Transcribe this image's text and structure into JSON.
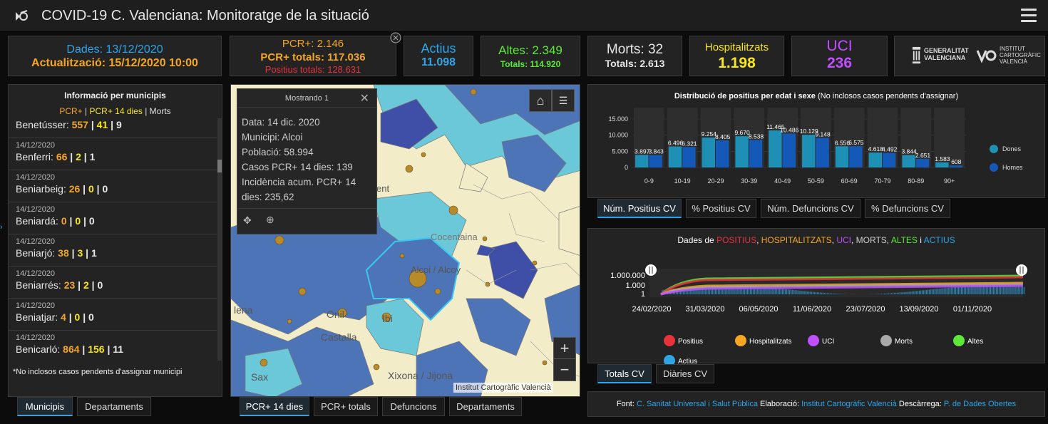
{
  "header": {
    "title": "COVID-19 C. Valenciana: Monitoratge de la situació"
  },
  "stats": {
    "dates": "Dades: 13/12/2020",
    "update": "Actualització: 15/12/2020 10:00",
    "pcr": "PCR+: 2.146",
    "pcr_total": "PCR+ totals: 117.036",
    "pos_total": "Positius totals: 128.631",
    "active_label": "Actius",
    "active_value": "11.098",
    "altes": "Altes: 2.349",
    "altes_total": "Totals: 114.920",
    "morts": "Morts: 32",
    "morts_total": "Totals: 2.613",
    "hosp_label": "Hospitalitzats",
    "hosp_value": "1.198",
    "uci_label": "UCI",
    "uci_value": "236",
    "logo1": "GENERALITAT VALENCIANA",
    "logo2": "INSTITUT CARTOGRÀFIC VALENCIÀ"
  },
  "colors": {
    "pcr": "#f5a623",
    "pcr14": "#f8e71c",
    "red": "#e8323c",
    "blue": "#2fa4e7",
    "green": "#5ee83a",
    "uci": "#c050ff",
    "hosp": "#f8e71c",
    "dones": "#1e8fb5",
    "homes": "#1458b8"
  },
  "municipis": {
    "title": "Informació per municipis",
    "legend_pcr": "PCR+",
    "legend_sep": " | ",
    "legend_pcr14": "PCR+ 14 dies",
    "legend_morts": "Morts",
    "items": [
      {
        "date": "14/12/2020",
        "name": "Benetússer:",
        "a": "557",
        "b": "41",
        "c": "9"
      },
      {
        "date": "14/12/2020",
        "name": "Benferri:",
        "a": "66",
        "b": "2",
        "c": "1"
      },
      {
        "date": "14/12/2020",
        "name": "Beniarbeig:",
        "a": "26",
        "b": "0",
        "c": "0"
      },
      {
        "date": "14/12/2020",
        "name": "Beniardá:",
        "a": "0",
        "b": "0",
        "c": "0"
      },
      {
        "date": "14/12/2020",
        "name": "Beniarjó:",
        "a": "38",
        "b": "3",
        "c": "1"
      },
      {
        "date": "14/12/2020",
        "name": "Beniarrés:",
        "a": "23",
        "b": "2",
        "c": "0"
      },
      {
        "date": "14/12/2020",
        "name": "Beniatjar:",
        "a": "4",
        "b": "0",
        "c": "0"
      },
      {
        "date": "14/12/2020",
        "name": "Benicarló:",
        "a": "864",
        "b": "156",
        "c": "11"
      }
    ],
    "note": "*No inclosos casos pendents d'assignar municipi",
    "tabs": [
      "Municipis",
      "Departaments"
    ]
  },
  "map": {
    "popup_title": "Mostrando 1",
    "popup_lines": [
      "Data: 14 dic. 2020",
      "Municipi: Alcoi",
      "Població: 58.994",
      "Casos PCR+ 14 dies: 139",
      "Incidència acum. PCR+ 14 dies: 235,62"
    ],
    "places": [
      "Cocentaina",
      "Alcoi / Alcoy",
      "Onil",
      "Ibi",
      "Castalla",
      "Xixona / Jijona",
      "Sax",
      "lena",
      "ent"
    ],
    "attribution": "Institut Cartogràfic Valencià",
    "tabs": [
      "PCR+ 14 dies",
      "PCR+ totals",
      "Defuncions",
      "Departaments"
    ]
  },
  "age_chart": {
    "title_main": "Distribució de positius per edat i sexe",
    "title_note": " (No inclosos casos pendents d'assignar)",
    "tabs": [
      "Núm. Positius CV",
      "% Positius CV",
      "Núm. Defuncions CV",
      "% Defuncions CV"
    ]
  },
  "chart_data": [
    {
      "type": "bar",
      "categories": [
        "0-9",
        "10-19",
        "20-29",
        "30-39",
        "40-49",
        "50-59",
        "60-69",
        "70-79",
        "80-89",
        "90+"
      ],
      "series": [
        {
          "name": "Dones",
          "values": [
            3897,
            6496,
            9254,
            9670,
            11465,
            10129,
            6556,
            4618,
            3844,
            1583
          ],
          "labels": [
            "3.897",
            "6.496",
            "9.254",
            "9.670",
            "11.465",
            "10.129",
            "6.556",
            "4.618",
            "3.844",
            "1.583"
          ]
        },
        {
          "name": "Homes",
          "values": [
            3843,
            6321,
            8405,
            8538,
            10486,
            9148,
            6575,
            4492,
            2651,
            608
          ],
          "labels": [
            "3.843",
            "6.321",
            "8.405",
            "8.538",
            "10.486",
            "9.148",
            "6.575",
            "4.492",
            "2.651",
            "608"
          ]
        }
      ],
      "yticks": [
        "15.000",
        "10.000",
        "5.000",
        "0"
      ],
      "ylim": [
        0,
        15000
      ]
    },
    {
      "type": "area",
      "title_parts": [
        "Dades de ",
        "POSITIUS",
        ", ",
        "HOSPITALITZATS",
        ", ",
        "UCI",
        ", ",
        "MORTS",
        ", ",
        "ALTES",
        " i ",
        "ACTIUS"
      ],
      "xticks": [
        "24/02/2020",
        "31/03/2020",
        "06/05/2020",
        "11/06/2020",
        "23/07/2020",
        "13/09/2020",
        "01/11/2020"
      ],
      "yticks": [
        "1.000.000",
        "1.000",
        "1"
      ],
      "yscale": "log",
      "legend": [
        "Positius",
        "Hospitalitzats",
        "UCI",
        "Morts",
        "Altes",
        "Actius"
      ],
      "tabs": [
        "Totals CV",
        "Diàries CV"
      ]
    }
  ],
  "source": {
    "font_label": "Font:",
    "font": "C. Sanitat Universal i Salut Pública",
    "elab_label": "Elaboració:",
    "elab": "Institut Cartogràfic Valencià",
    "desc_label": "Descàrrega:",
    "desc": "P. de Dades Obertes"
  }
}
